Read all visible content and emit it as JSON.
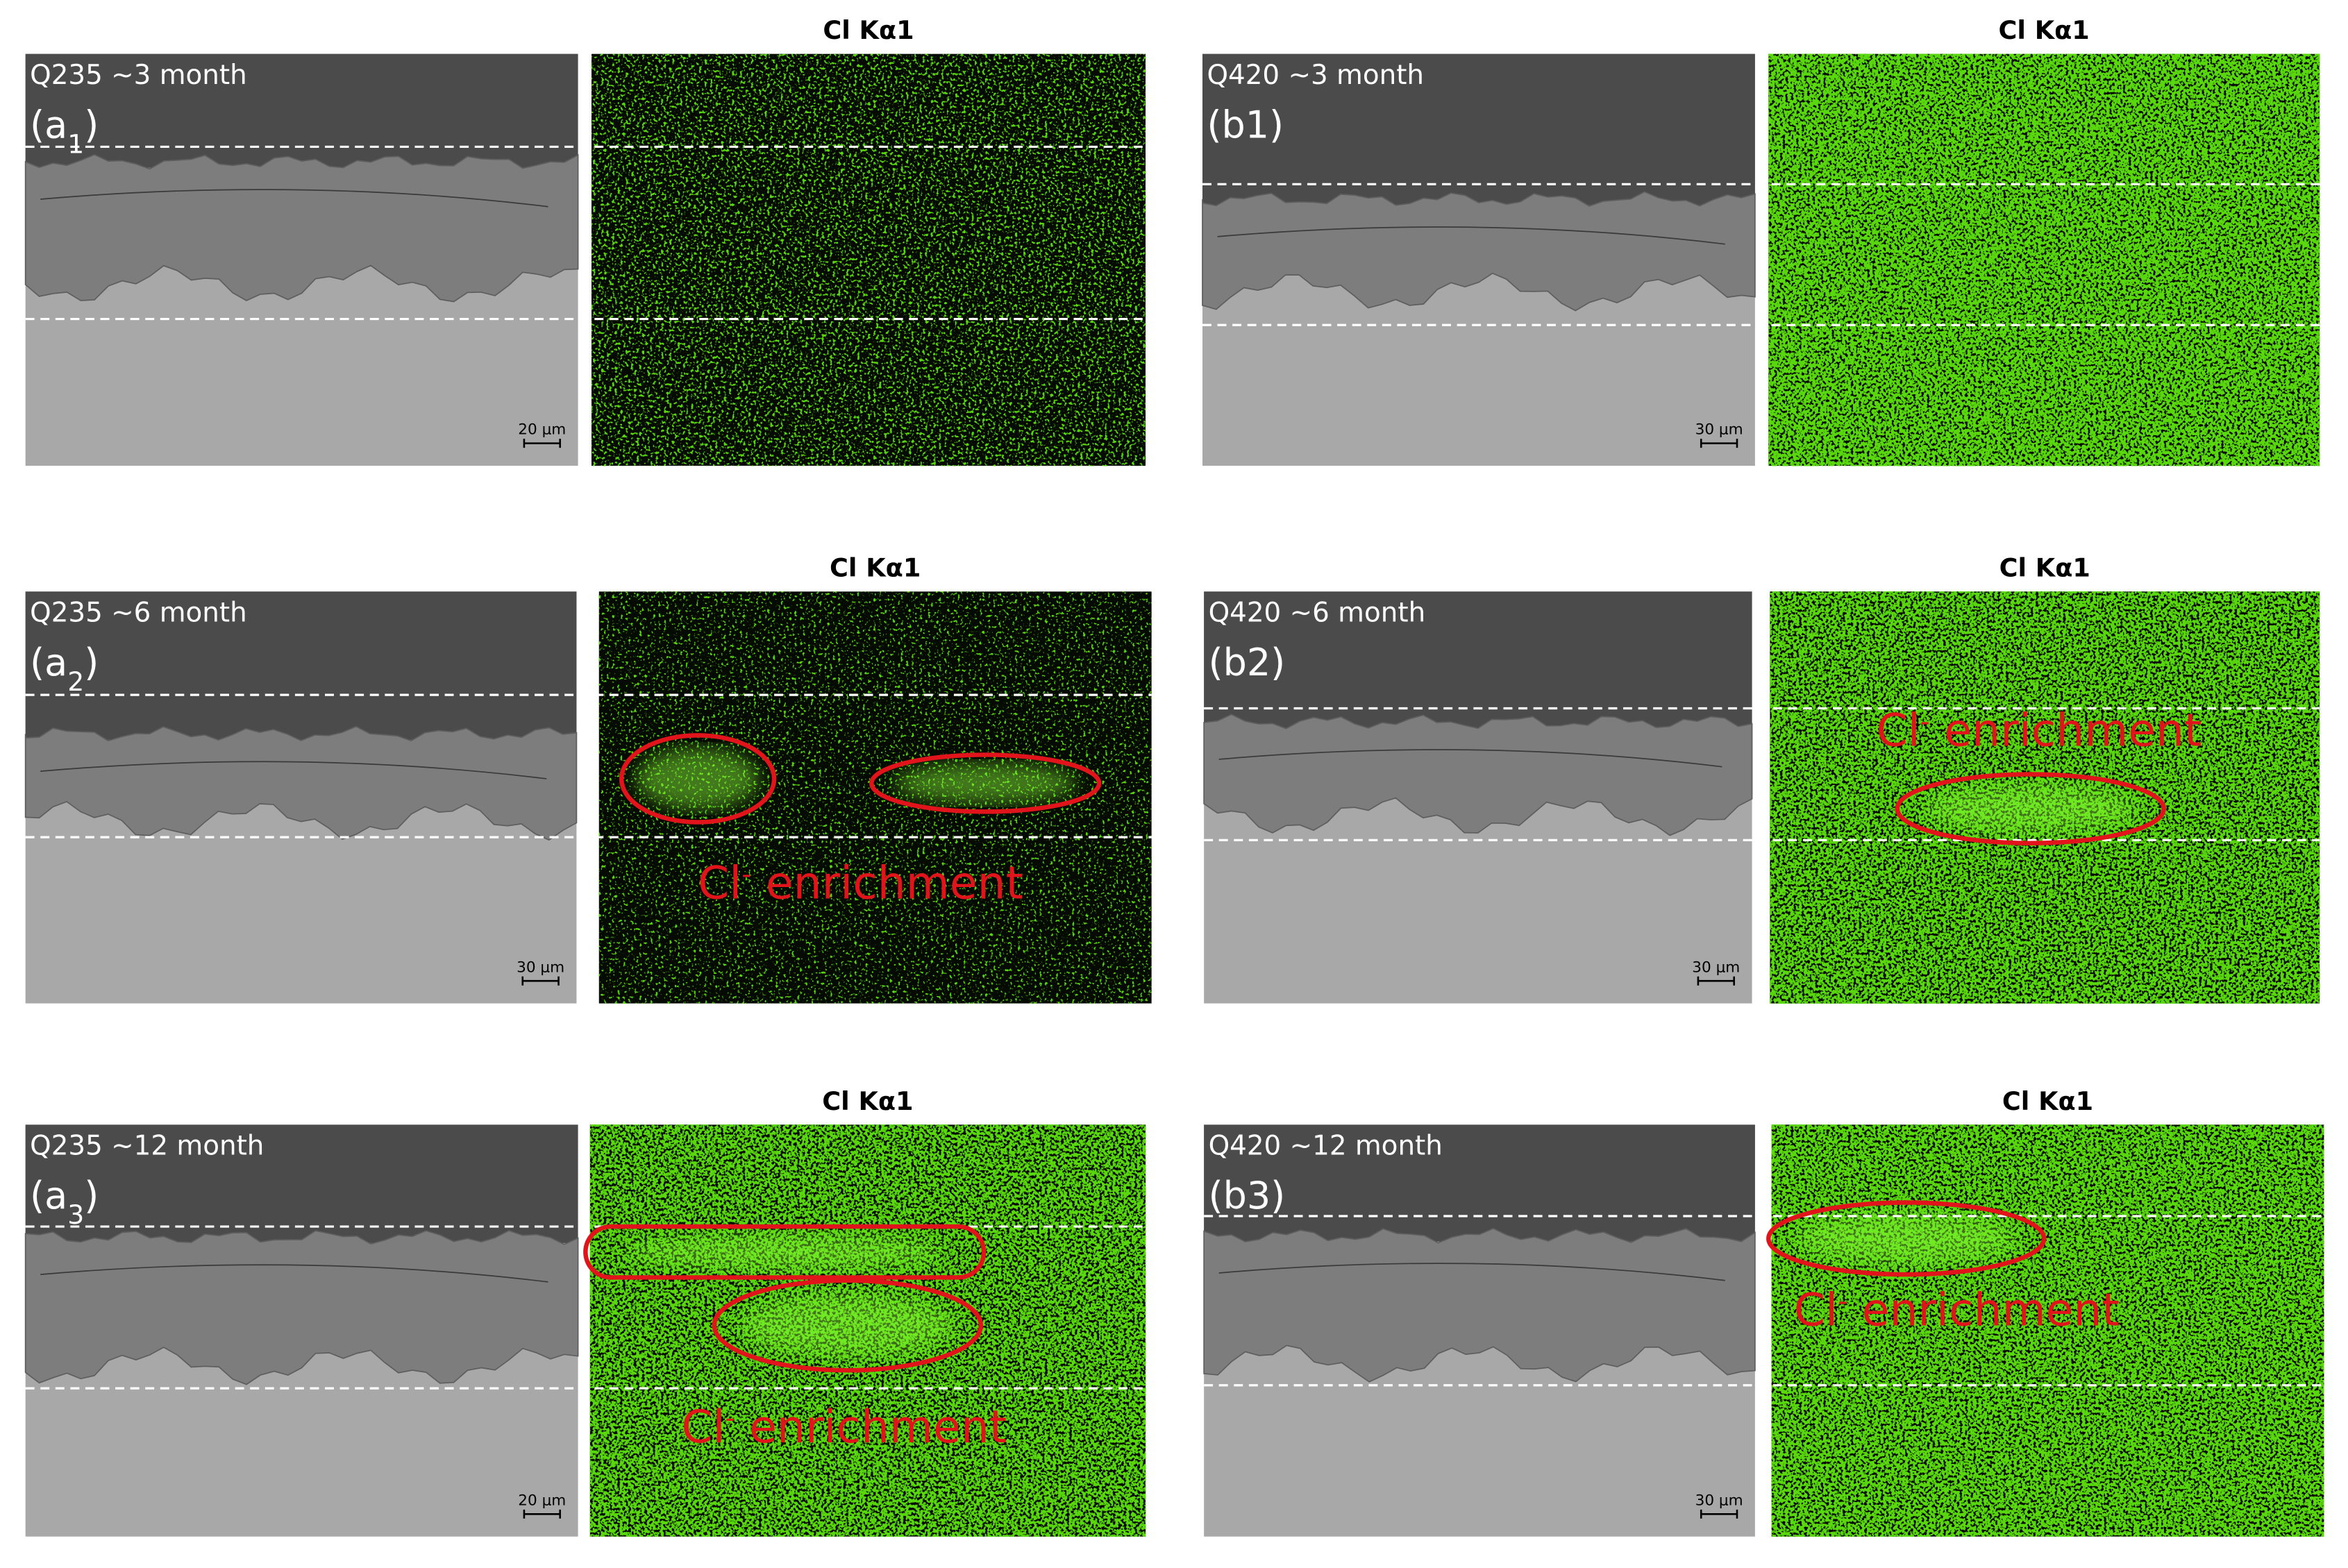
{
  "panels": [
    {
      "sample": "Q235 ~3 month",
      "label": [
        {
          "text": "(a"
        },
        {
          "text": "1",
          "sub": true
        },
        {
          "text": ")"
        }
      ],
      "scale": "20 μm",
      "map_title": "Cl Kα1"
    },
    {
      "sample": "Q420 ~3 month",
      "label": [
        {
          "text": "(b1)"
        }
      ],
      "scale": "30 μm",
      "map_title": "Cl Kα1"
    },
    {
      "sample": "Q235 ~6 month",
      "label": [
        {
          "text": "(a"
        },
        {
          "text": "2",
          "sub": true
        },
        {
          "text": ")"
        }
      ],
      "scale": "30 μm",
      "map_title": "Cl Kα1",
      "annotation": [
        {
          "text": "Cl"
        },
        {
          "text": "-",
          "sup": true
        },
        {
          "text": " enrichment"
        }
      ]
    },
    {
      "sample": "Q420 ~6 month",
      "label": [
        {
          "text": "(b2)"
        }
      ],
      "scale": "30 μm",
      "map_title": "Cl Kα1",
      "annotation": [
        {
          "text": "Cl"
        },
        {
          "text": "-",
          "sup": true
        },
        {
          "text": " enrichment"
        }
      ]
    },
    {
      "sample": "Q235 ~12 month",
      "label": [
        {
          "text": "(a"
        },
        {
          "text": "3",
          "sub": true
        },
        {
          "text": ")"
        }
      ],
      "scale": "20 μm",
      "map_title": "Cl Kα1",
      "annotation": [
        {
          "text": "Cl"
        },
        {
          "text": "-",
          "sup": true
        },
        {
          "text": " enrichment"
        }
      ]
    },
    {
      "sample": "Q420 ~12 month",
      "label": [
        {
          "text": "(b3)"
        }
      ],
      "scale": "30 μm",
      "map_title": "Cl Kα1",
      "annotation": [
        {
          "text": "Cl"
        },
        {
          "text": "-",
          "sup": true
        },
        {
          "text": " enrichment"
        }
      ]
    }
  ]
}
